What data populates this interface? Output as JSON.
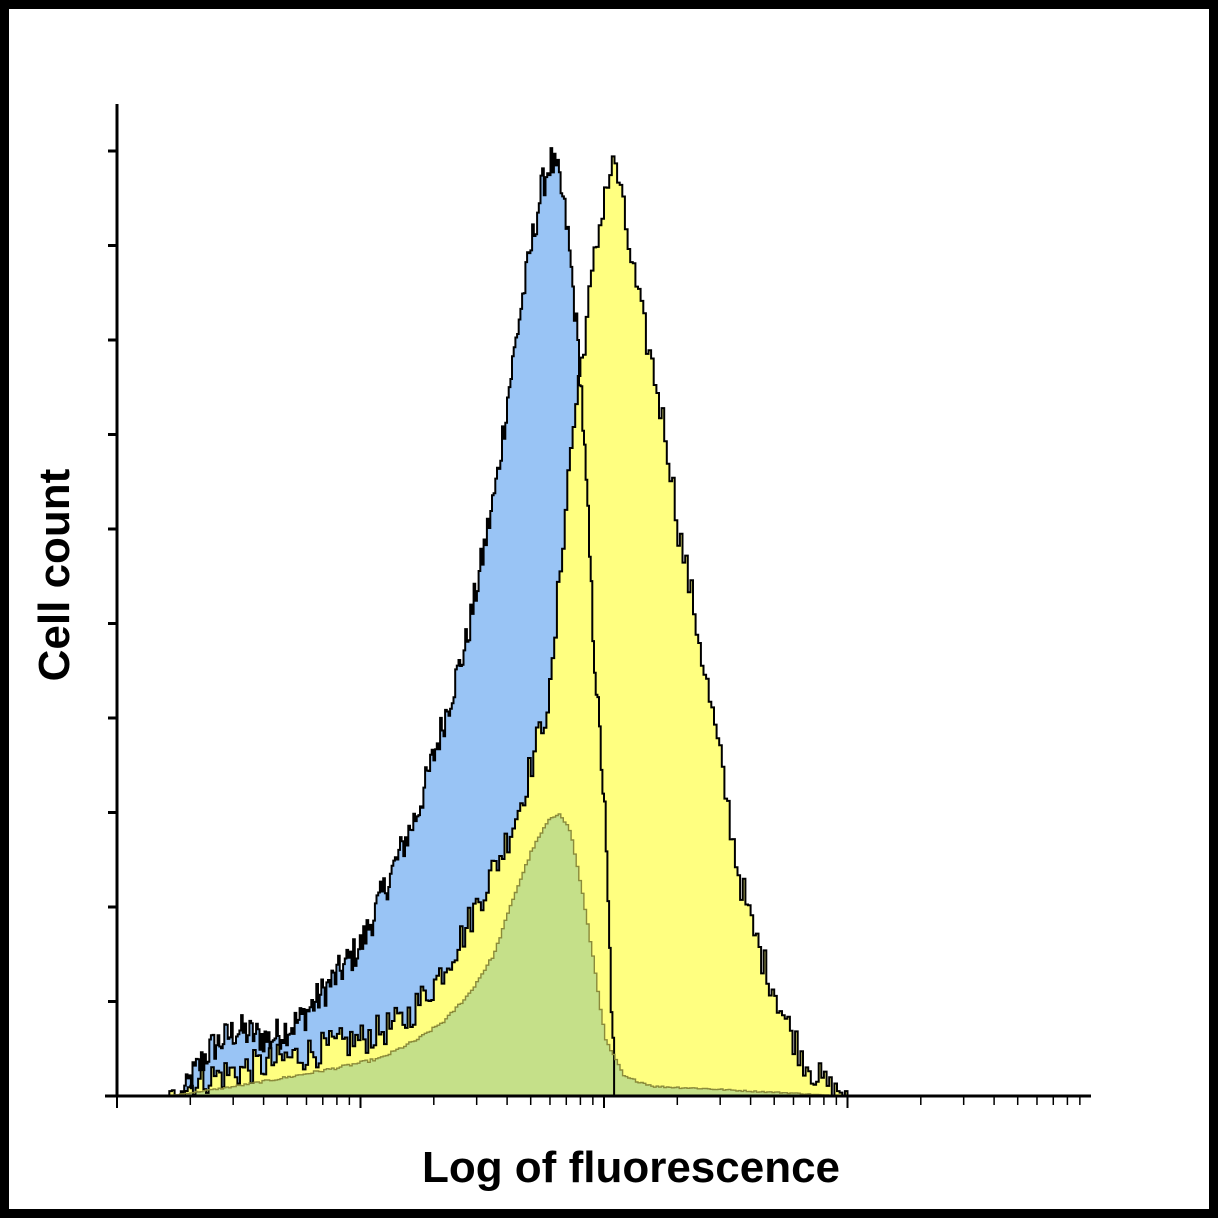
{
  "chart_data": {
    "type": "area",
    "title": "",
    "xlabel": "Log of fluorescence",
    "ylabel": "Cell count",
    "xscale": "log",
    "xlim": [
      1,
      10000
    ],
    "ylim": [
      0,
      100
    ],
    "x_tick_labels": [],
    "y_tick_labels": [],
    "grid": false,
    "legend": "none",
    "series": [
      {
        "color": "#99c4f5",
        "outline": "#000000",
        "x": [
          1.8,
          2.4,
          3.1,
          4.2,
          5.6,
          7.5,
          10,
          13,
          17,
          22,
          27,
          32,
          36,
          40,
          45,
          50,
          55,
          60,
          65,
          70,
          75,
          80,
          85,
          90,
          100,
          110
        ],
        "values": [
          0,
          5,
          7,
          6,
          8,
          12,
          16,
          23,
          30,
          40,
          48,
          58,
          65,
          74,
          83,
          90,
          96,
          99,
          97,
          92,
          84,
          75,
          62,
          48,
          30,
          0
        ]
      },
      {
        "color": "#ffff80",
        "outline": "#000000",
        "x": [
          1.6,
          2.4,
          3.5,
          5,
          7,
          10,
          15,
          20,
          26,
          32,
          38,
          45,
          52,
          60,
          65,
          72,
          80,
          90,
          100,
          110,
          125,
          140,
          160,
          180,
          200,
          230,
          260,
          300,
          350,
          400,
          450,
          500,
          550,
          600,
          650,
          700,
          750,
          850,
          1000
        ],
        "values": [
          0,
          2,
          3,
          4,
          5,
          6,
          8,
          12,
          17,
          22,
          26,
          31,
          37,
          43,
          55,
          68,
          78,
          88,
          96,
          99,
          90,
          83,
          76,
          69,
          60,
          52,
          44,
          35,
          24,
          18,
          14,
          11,
          8,
          6,
          4,
          3,
          2,
          1,
          0
        ]
      },
      {
        "color": "#c5e089",
        "outline": "#8a8a3a",
        "x": [
          1.6,
          3,
          5,
          8,
          12,
          17,
          22,
          28,
          35,
          42,
          50,
          58,
          65,
          72,
          80,
          90,
          100,
          120,
          160,
          250,
          400,
          600,
          900
        ],
        "values": [
          0,
          1,
          2,
          3,
          4,
          6,
          8,
          11,
          15,
          21,
          26,
          29,
          30,
          28,
          22,
          14,
          6,
          2,
          1,
          0.8,
          0.5,
          0.3,
          0
        ]
      }
    ]
  }
}
